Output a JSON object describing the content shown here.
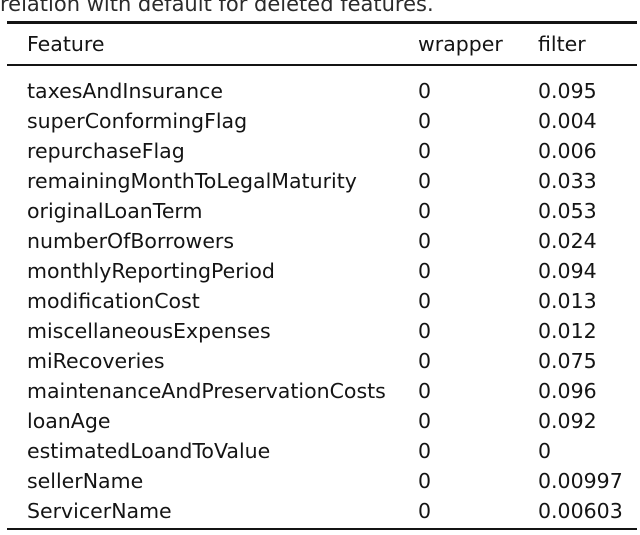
{
  "caption_fragment": "relation with default for deleted features.",
  "table": {
    "headers": [
      "Feature",
      "wrapper",
      "filter"
    ],
    "rows": [
      {
        "feature": "taxesAndInsurance",
        "wrapper": "0",
        "filter": "0.095"
      },
      {
        "feature": "superConformingFlag",
        "wrapper": "0",
        "filter": "0.004"
      },
      {
        "feature": "repurchaseFlag",
        "wrapper": "0",
        "filter": "0.006"
      },
      {
        "feature": "remainingMonthToLegalMaturity",
        "wrapper": "0",
        "filter": "0.033"
      },
      {
        "feature": "originalLoanTerm",
        "wrapper": "0",
        "filter": "0.053"
      },
      {
        "feature": "numberOfBorrowers",
        "wrapper": "0",
        "filter": "0.024"
      },
      {
        "feature": "monthlyReportingPeriod",
        "wrapper": "0",
        "filter": "0.094"
      },
      {
        "feature": "modificationCost",
        "wrapper": "0",
        "filter": "0.013"
      },
      {
        "feature": "miscellaneousExpenses",
        "wrapper": "0",
        "filter": "0.012"
      },
      {
        "feature": "miRecoveries",
        "wrapper": "0",
        "filter": "0.075"
      },
      {
        "feature": "maintenanceAndPreservationCosts",
        "wrapper": "0",
        "filter": "0.096"
      },
      {
        "feature": "loanAge",
        "wrapper": "0",
        "filter": "0.092"
      },
      {
        "feature": "estimatedLoandToValue",
        "wrapper": "0",
        "filter": "0"
      },
      {
        "feature": "sellerName",
        "wrapper": "0",
        "filter": "0.00997"
      },
      {
        "feature": "ServicerName",
        "wrapper": "0",
        "filter": "0.00603"
      }
    ]
  },
  "colors": {
    "background": "#ffffff",
    "text": "#141414",
    "rule": "#141414"
  }
}
